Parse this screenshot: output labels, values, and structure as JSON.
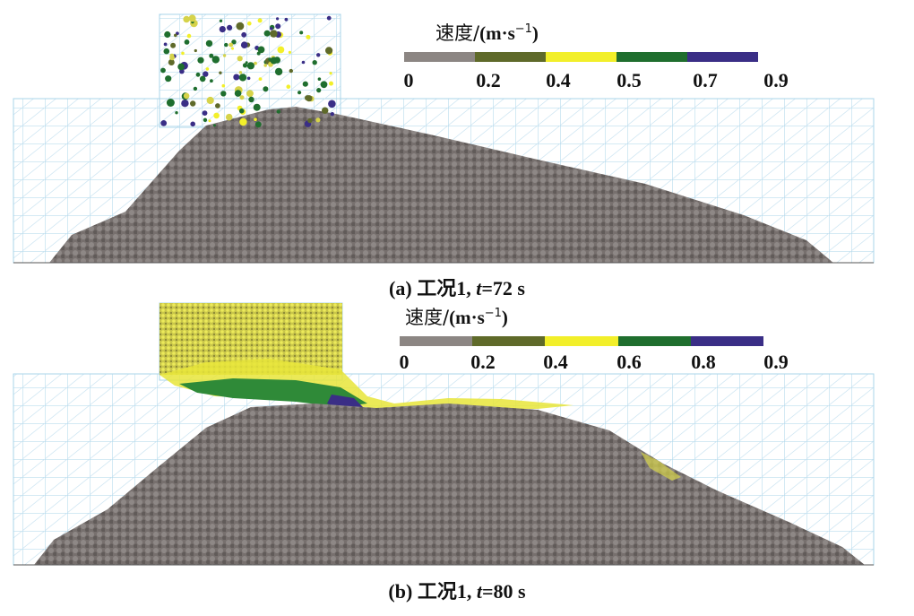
{
  "panels": [
    {
      "id": "a",
      "legend": {
        "title": "速度/",
        "unit": "(m·s",
        "exp": "−1",
        "close": ")",
        "ticks": [
          "0",
          "0.2",
          "0.4",
          "0.5",
          "0.7",
          "0.9"
        ]
      },
      "caption": {
        "label": "(a)",
        "case": "工况1,",
        "var": "t",
        "value": "=72 s"
      }
    },
    {
      "id": "b",
      "legend": {
        "title": "速度/",
        "unit": "(m·s",
        "exp": "−1",
        "close": ")",
        "ticks": [
          "0",
          "0.2",
          "0.4",
          "0.6",
          "0.8",
          "0.9"
        ]
      },
      "caption": {
        "label": "(b)",
        "case": "工况1,",
        "var": "t",
        "value": "=80 s"
      }
    }
  ],
  "colors": {
    "legend": [
      "#8c8683",
      "#5f6a2a",
      "#f2ef2a",
      "#1f6e2e",
      "#3a2e86"
    ],
    "pile": "#77706e",
    "grid": "#a9d4ea"
  }
}
